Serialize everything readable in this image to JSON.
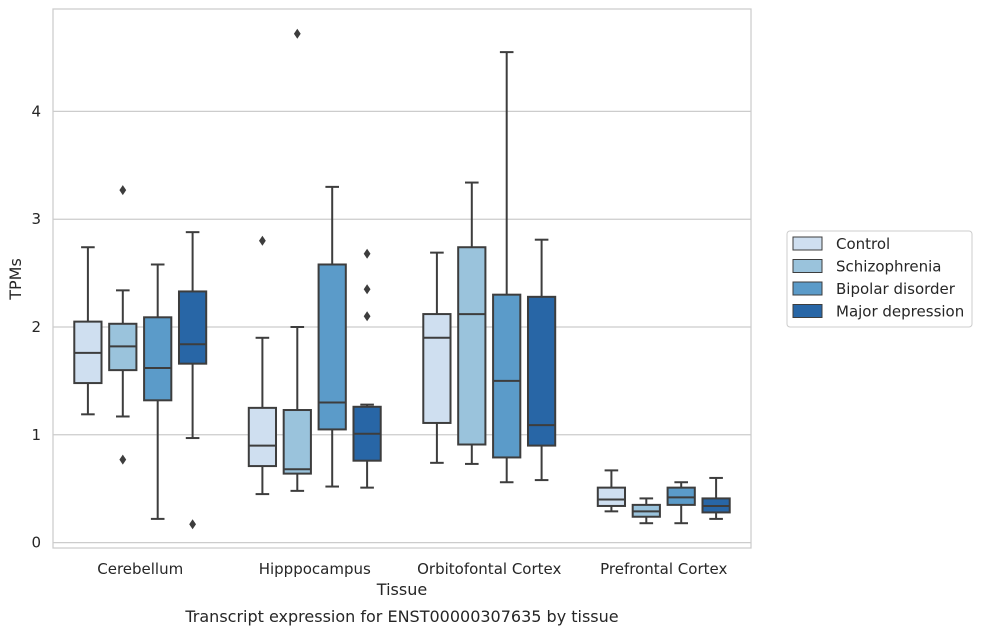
{
  "chart_data": {
    "type": "box",
    "xlabel": "Tissue",
    "ylabel": "TPMs",
    "caption": "Transcript expression for ENST00000307635 by tissue",
    "ylim": [
      -0.05,
      4.95
    ],
    "yticks": [
      "0",
      "1",
      "2",
      "3",
      "4"
    ],
    "grid": true,
    "legend_position": "right",
    "categories": [
      "Cerebellum",
      "Hipppocampus",
      "Orbitofontal Cortex",
      "Prefrontal Cortex"
    ],
    "series": [
      {
        "name": "Control",
        "color": "#cfdff0",
        "boxes": [
          {
            "whislo": 1.19,
            "q1": 1.48,
            "med": 1.76,
            "q3": 2.05,
            "whishi": 2.74,
            "fliers": []
          },
          {
            "whislo": 0.45,
            "q1": 0.71,
            "med": 0.9,
            "q3": 1.25,
            "whishi": 1.9,
            "fliers": [
              2.8
            ]
          },
          {
            "whislo": 0.74,
            "q1": 1.11,
            "med": 1.9,
            "q3": 2.12,
            "whishi": 2.69,
            "fliers": []
          },
          {
            "whislo": 0.29,
            "q1": 0.34,
            "med": 0.4,
            "q3": 0.51,
            "whishi": 0.67,
            "fliers": []
          }
        ]
      },
      {
        "name": "Schizophrenia",
        "color": "#9ac3dc",
        "boxes": [
          {
            "whislo": 1.17,
            "q1": 1.6,
            "med": 1.82,
            "q3": 2.03,
            "whishi": 2.34,
            "fliers": [
              0.77,
              3.27
            ]
          },
          {
            "whislo": 0.48,
            "q1": 0.64,
            "med": 0.68,
            "q3": 1.23,
            "whishi": 2.0,
            "fliers": [
              4.72
            ]
          },
          {
            "whislo": 0.73,
            "q1": 0.91,
            "med": 2.12,
            "q3": 2.74,
            "whishi": 3.34,
            "fliers": []
          },
          {
            "whislo": 0.18,
            "q1": 0.24,
            "med": 0.29,
            "q3": 0.35,
            "whishi": 0.41,
            "fliers": []
          }
        ]
      },
      {
        "name": "Bipolar disorder",
        "color": "#5b9bc9",
        "boxes": [
          {
            "whislo": 0.22,
            "q1": 1.32,
            "med": 1.62,
            "q3": 2.09,
            "whishi": 2.58,
            "fliers": []
          },
          {
            "whislo": 0.52,
            "q1": 1.05,
            "med": 1.3,
            "q3": 2.58,
            "whishi": 3.3,
            "fliers": []
          },
          {
            "whislo": 0.56,
            "q1": 0.79,
            "med": 1.5,
            "q3": 2.3,
            "whishi": 4.55,
            "fliers": []
          },
          {
            "whislo": 0.18,
            "q1": 0.35,
            "med": 0.42,
            "q3": 0.51,
            "whishi": 0.56,
            "fliers": []
          }
        ]
      },
      {
        "name": "Major depression",
        "color": "#2866a6",
        "boxes": [
          {
            "whislo": 0.97,
            "q1": 1.66,
            "med": 1.84,
            "q3": 2.33,
            "whishi": 2.88,
            "fliers": [
              0.17
            ]
          },
          {
            "whislo": 0.51,
            "q1": 0.76,
            "med": 1.01,
            "q3": 1.26,
            "whishi": 1.28,
            "fliers": [
              2.1,
              2.35,
              2.68
            ]
          },
          {
            "whislo": 0.58,
            "q1": 0.9,
            "med": 1.09,
            "q3": 2.28,
            "whishi": 2.81,
            "fliers": []
          },
          {
            "whislo": 0.22,
            "q1": 0.28,
            "med": 0.34,
            "q3": 0.41,
            "whishi": 0.6,
            "fliers": []
          }
        ]
      }
    ]
  }
}
